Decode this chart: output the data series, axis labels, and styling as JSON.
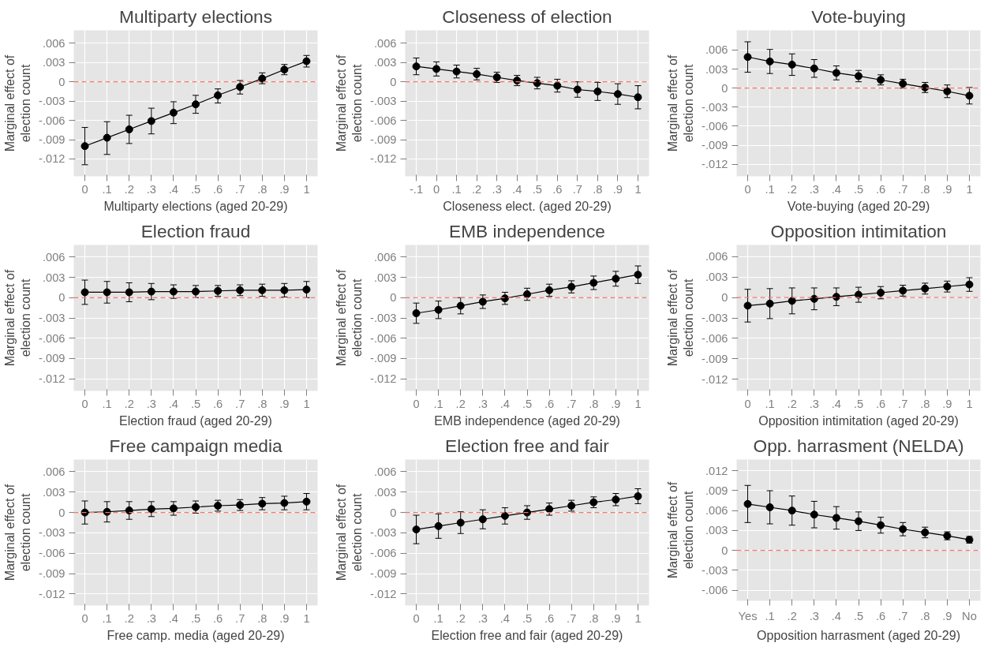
{
  "chart_data": [
    {
      "type": "line",
      "title": "Multiparty elections",
      "xlabel": "Multiparty elections (aged 20-29)",
      "ylabel": "Marginal effect of\nelection count",
      "x": [
        0,
        0.1,
        0.2,
        0.3,
        0.4,
        0.5,
        0.6,
        0.7,
        0.8,
        0.9,
        1
      ],
      "values": [
        -0.01,
        -0.0087,
        -0.0074,
        -0.0061,
        -0.0048,
        -0.0035,
        -0.0021,
        -0.0008,
        0.0005,
        0.0019,
        0.0032
      ],
      "errors": [
        [
          -0.0129,
          -0.0071
        ],
        [
          -0.0113,
          -0.0062
        ],
        [
          -0.0096,
          -0.0052
        ],
        [
          -0.0081,
          -0.0041
        ],
        [
          -0.0065,
          -0.0031
        ],
        [
          -0.0049,
          -0.0021
        ],
        [
          -0.0033,
          -0.0011
        ],
        [
          -0.0019,
          0.0002
        ],
        [
          -0.0003,
          0.0014
        ],
        [
          0.0011,
          0.0027
        ],
        [
          0.0023,
          0.0041
        ]
      ],
      "color": "#000000",
      "marker": "circle",
      "line_style": "solid",
      "grid": true,
      "xlim": [
        -0.05,
        1.05
      ],
      "ylim": [
        -0.0147,
        0.008
      ],
      "xticks": [
        0,
        {
          "value": 0.1,
          "label": ".1"
        },
        {
          "value": 0.2,
          "label": ".2"
        },
        {
          "value": 0.3,
          "label": ".3"
        },
        {
          "value": 0.4,
          "label": ".4"
        },
        {
          "value": 0.5,
          "label": ".5"
        },
        {
          "value": 0.6,
          "label": ".6"
        },
        {
          "value": 0.7,
          "label": ".7"
        },
        {
          "value": 0.8,
          "label": ".8"
        },
        {
          "value": 0.9,
          "label": ".9"
        },
        1
      ],
      "yticks": [
        {
          "value": -0.012,
          "label": "-.012"
        },
        {
          "value": -0.009,
          "label": "-.009"
        },
        {
          "value": -0.006,
          "label": "-.006"
        },
        {
          "value": -0.003,
          "label": "-.003"
        },
        0,
        {
          "value": 0.003,
          "label": ".003"
        },
        {
          "value": 0.006,
          "label": ".006"
        }
      ],
      "ref_lines": [
        {
          "axis": "y",
          "value": 0,
          "color": "#f8766d",
          "line_style": "dashed"
        }
      ]
    },
    {
      "type": "line",
      "title": "Closeness of election",
      "xlabel": "Closeness elect. (aged 20-29)",
      "ylabel": "Marginal effect of\nelection count",
      "x": [
        -0.1,
        0,
        0.1,
        0.2,
        0.3,
        0.4,
        0.5,
        0.6,
        0.7,
        0.8,
        0.9,
        1
      ],
      "values": [
        0.0024,
        0.002,
        0.0016,
        0.0012,
        0.0007,
        0.0002,
        -0.0002,
        -0.0006,
        -0.0012,
        -0.0015,
        -0.0019,
        -0.0024
      ],
      "errors": [
        0.0013,
        0.0011,
        0.001,
        0.0009,
        0.0008,
        0.0008,
        0.0009,
        0.001,
        0.0012,
        0.0014,
        0.0016,
        0.0018
      ],
      "color": "#000000",
      "marker": "circle",
      "line_style": "solid",
      "grid": true,
      "xlim": [
        -0.155,
        1.055
      ],
      "ylim": [
        -0.0147,
        0.008
      ],
      "xticks": [
        {
          "value": -0.1,
          "label": "-.1"
        },
        0,
        {
          "value": 0.1,
          "label": ".1"
        },
        {
          "value": 0.2,
          "label": ".2"
        },
        {
          "value": 0.3,
          "label": ".3"
        },
        {
          "value": 0.4,
          "label": ".4"
        },
        {
          "value": 0.5,
          "label": ".5"
        },
        {
          "value": 0.6,
          "label": ".6"
        },
        {
          "value": 0.7,
          "label": ".7"
        },
        {
          "value": 0.8,
          "label": ".8"
        },
        {
          "value": 0.9,
          "label": ".9"
        },
        1
      ],
      "yticks": [
        {
          "value": -0.012,
          "label": "-.012"
        },
        {
          "value": -0.009,
          "label": "-.009"
        },
        {
          "value": -0.006,
          "label": "-.006"
        },
        {
          "value": -0.003,
          "label": "-.003"
        },
        0,
        {
          "value": 0.003,
          "label": ".003"
        },
        {
          "value": 0.006,
          "label": ".006"
        }
      ],
      "ref_lines": [
        {
          "axis": "y",
          "value": 0,
          "color": "#f8766d",
          "line_style": "dashed"
        }
      ]
    },
    {
      "type": "line",
      "title": "Vote-buying",
      "xlabel": "Vote-buying (aged 20-29)",
      "ylabel": "Marginal effect of\nelection count",
      "x": [
        0,
        0.1,
        0.2,
        0.3,
        0.4,
        0.5,
        0.6,
        0.7,
        0.8,
        0.9,
        1
      ],
      "values": [
        0.0049,
        0.0042,
        0.0037,
        0.0031,
        0.0024,
        0.0019,
        0.0013,
        0.0007,
        0.0001,
        -0.0005,
        -0.0012
      ],
      "errors": [
        0.0024,
        0.0019,
        0.0017,
        0.0014,
        0.0011,
        0.0009,
        0.0008,
        0.0007,
        0.0008,
        0.001,
        0.0013
      ],
      "color": "#000000",
      "marker": "circle",
      "line_style": "solid",
      "grid": true,
      "xlim": [
        -0.05,
        1.05
      ],
      "ylim": [
        -0.0139,
        0.0091
      ],
      "xticks": [
        0,
        {
          "value": 0.1,
          "label": ".1"
        },
        {
          "value": 0.2,
          "label": ".2"
        },
        {
          "value": 0.3,
          "label": ".3"
        },
        {
          "value": 0.4,
          "label": ".4"
        },
        {
          "value": 0.5,
          "label": ".5"
        },
        {
          "value": 0.6,
          "label": ".6"
        },
        {
          "value": 0.7,
          "label": ".7"
        },
        {
          "value": 0.8,
          "label": ".8"
        },
        {
          "value": 0.9,
          "label": ".9"
        },
        1
      ],
      "yticks": [
        {
          "value": -0.012,
          "label": "-.012"
        },
        {
          "value": -0.009,
          "label": "-.009"
        },
        {
          "value": -0.006,
          "label": "-.006"
        },
        {
          "value": -0.003,
          "label": "-.003"
        },
        0,
        {
          "value": 0.003,
          "label": ".003"
        },
        {
          "value": 0.006,
          "label": ".006"
        }
      ],
      "ref_lines": [
        {
          "axis": "y",
          "value": 0,
          "color": "#f8766d",
          "line_style": "dashed"
        }
      ]
    },
    {
      "type": "line",
      "title": "Election fraud",
      "xlabel": "Election fraud (aged 20-29)",
      "ylabel": "Marginal effect of\nelection count",
      "x": [
        0,
        0.1,
        0.2,
        0.3,
        0.4,
        0.5,
        0.6,
        0.7,
        0.8,
        0.9,
        1
      ],
      "values": [
        0.0008,
        0.0008,
        0.0008,
        0.0009,
        0.0009,
        0.0009,
        0.001,
        0.0011,
        0.0011,
        0.0011,
        0.0012
      ],
      "errors": [
        0.0018,
        0.0016,
        0.0014,
        0.0012,
        0.001,
        0.0009,
        0.0008,
        0.0008,
        0.0009,
        0.001,
        0.0012
      ],
      "color": "#000000",
      "marker": "circle",
      "line_style": "solid",
      "grid": true,
      "xlim": [
        -0.05,
        1.05
      ],
      "ylim": [
        -0.0138,
        0.0078
      ],
      "xticks": [
        0,
        {
          "value": 0.1,
          "label": ".1"
        },
        {
          "value": 0.2,
          "label": ".2"
        },
        {
          "value": 0.3,
          "label": ".3"
        },
        {
          "value": 0.4,
          "label": ".4"
        },
        {
          "value": 0.5,
          "label": ".5"
        },
        {
          "value": 0.6,
          "label": ".6"
        },
        {
          "value": 0.7,
          "label": ".7"
        },
        {
          "value": 0.8,
          "label": ".8"
        },
        {
          "value": 0.9,
          "label": ".9"
        },
        1
      ],
      "yticks": [
        {
          "value": -0.012,
          "label": "-.012"
        },
        {
          "value": -0.009,
          "label": "-.009"
        },
        {
          "value": -0.006,
          "label": "-.006"
        },
        {
          "value": -0.003,
          "label": "-.003"
        },
        0,
        {
          "value": 0.003,
          "label": ".003"
        },
        {
          "value": 0.006,
          "label": ".006"
        }
      ],
      "ref_lines": [
        {
          "axis": "y",
          "value": 0,
          "color": "#f8766d",
          "line_style": "dashed"
        }
      ]
    },
    {
      "type": "line",
      "title": "EMB independence",
      "xlabel": "EMB independence (aged 20-29)",
      "ylabel": "Marginal effect of\nelection count",
      "x": [
        0,
        0.1,
        0.2,
        0.3,
        0.4,
        0.5,
        0.6,
        0.7,
        0.8,
        0.9,
        1
      ],
      "values": [
        -0.0023,
        -0.0018,
        -0.0012,
        -0.0006,
        -0.0001,
        0.0005,
        0.0011,
        0.0016,
        0.0022,
        0.0028,
        0.0034
      ],
      "errors": [
        0.0015,
        0.0013,
        0.0012,
        0.001,
        0.0009,
        0.0009,
        0.0009,
        0.0009,
        0.001,
        0.0011,
        0.0013
      ],
      "color": "#000000",
      "marker": "circle",
      "line_style": "solid",
      "grid": true,
      "xlim": [
        -0.05,
        1.05
      ],
      "ylim": [
        -0.0138,
        0.0078
      ],
      "xticks": [
        0,
        {
          "value": 0.1,
          "label": ".1"
        },
        {
          "value": 0.2,
          "label": ".2"
        },
        {
          "value": 0.3,
          "label": ".3"
        },
        {
          "value": 0.4,
          "label": ".4"
        },
        {
          "value": 0.5,
          "label": ".5"
        },
        {
          "value": 0.6,
          "label": ".6"
        },
        {
          "value": 0.7,
          "label": ".7"
        },
        {
          "value": 0.8,
          "label": ".8"
        },
        {
          "value": 0.9,
          "label": ".9"
        },
        1
      ],
      "yticks": [
        {
          "value": -0.012,
          "label": "-.012"
        },
        {
          "value": -0.009,
          "label": "-.009"
        },
        {
          "value": -0.006,
          "label": "-.006"
        },
        {
          "value": -0.003,
          "label": "-.003"
        },
        0,
        {
          "value": 0.003,
          "label": ".003"
        },
        {
          "value": 0.006,
          "label": ".006"
        }
      ],
      "ref_lines": [
        {
          "axis": "y",
          "value": 0,
          "color": "#f8766d",
          "line_style": "dashed"
        }
      ]
    },
    {
      "type": "line",
      "title": "Opposition intimitation",
      "xlabel": "Opposition intimitation (aged 20-29)",
      "ylabel": "Marginal effect of\nelection count",
      "x": [
        0,
        0.1,
        0.2,
        0.3,
        0.4,
        0.5,
        0.6,
        0.7,
        0.8,
        0.9,
        1
      ],
      "values": [
        -0.0012,
        -0.0009,
        -0.0005,
        -0.0002,
        0.0001,
        0.0004,
        0.0007,
        0.001,
        0.0013,
        0.0016,
        0.0019
      ],
      "errors": [
        0.0024,
        0.0022,
        0.0019,
        0.0016,
        0.0013,
        0.0011,
        0.0009,
        0.0008,
        0.0008,
        0.0008,
        0.001
      ],
      "color": "#000000",
      "marker": "circle",
      "line_style": "solid",
      "grid": true,
      "xlim": [
        -0.05,
        1.05
      ],
      "ylim": [
        -0.0137,
        0.0077
      ],
      "xticks": [
        0,
        {
          "value": 0.1,
          "label": ".1"
        },
        {
          "value": 0.2,
          "label": ".2"
        },
        {
          "value": 0.3,
          "label": ".3"
        },
        {
          "value": 0.4,
          "label": ".4"
        },
        {
          "value": 0.5,
          "label": ".5"
        },
        {
          "value": 0.6,
          "label": ".6"
        },
        {
          "value": 0.7,
          "label": ".7"
        },
        {
          "value": 0.8,
          "label": ".8"
        },
        {
          "value": 0.9,
          "label": ".9"
        },
        1
      ],
      "yticks": [
        {
          "value": -0.012,
          "label": "-.012"
        },
        {
          "value": -0.009,
          "label": "-.009"
        },
        {
          "value": -0.006,
          "label": "-.006"
        },
        {
          "value": -0.003,
          "label": "-.003"
        },
        0,
        {
          "value": 0.003,
          "label": ".003"
        },
        {
          "value": 0.006,
          "label": ".006"
        }
      ],
      "ref_lines": [
        {
          "axis": "y",
          "value": 0,
          "color": "#f8766d",
          "line_style": "dashed"
        }
      ]
    },
    {
      "type": "line",
      "title": "Free campaign media",
      "xlabel": "Free camp. media (aged 20-29)",
      "ylabel": "Marginal effect of\nelection count",
      "x": [
        0,
        0.1,
        0.2,
        0.3,
        0.4,
        0.5,
        0.6,
        0.7,
        0.8,
        0.9,
        1
      ],
      "values": [
        0.0,
        0.0001,
        0.0003,
        0.0005,
        0.0006,
        0.0008,
        0.001,
        0.0011,
        0.0013,
        0.0014,
        0.0016
      ],
      "errors": [
        0.0017,
        0.0015,
        0.0013,
        0.0011,
        0.001,
        0.0009,
        0.0008,
        0.0008,
        0.0009,
        0.001,
        0.0012
      ],
      "color": "#000000",
      "marker": "circle",
      "line_style": "solid",
      "grid": true,
      "xlim": [
        -0.05,
        1.05
      ],
      "ylim": [
        -0.0137,
        0.0078
      ],
      "xticks": [
        0,
        {
          "value": 0.1,
          "label": ".1"
        },
        {
          "value": 0.2,
          "label": ".2"
        },
        {
          "value": 0.3,
          "label": ".3"
        },
        {
          "value": 0.4,
          "label": ".4"
        },
        {
          "value": 0.5,
          "label": ".5"
        },
        {
          "value": 0.6,
          "label": ".6"
        },
        {
          "value": 0.7,
          "label": ".7"
        },
        {
          "value": 0.8,
          "label": ".8"
        },
        {
          "value": 0.9,
          "label": ".9"
        },
        1
      ],
      "yticks": [
        {
          "value": -0.012,
          "label": "-.012"
        },
        {
          "value": -0.009,
          "label": "-.009"
        },
        {
          "value": -0.006,
          "label": "-.006"
        },
        {
          "value": -0.003,
          "label": "-.003"
        },
        0,
        {
          "value": 0.003,
          "label": ".003"
        },
        {
          "value": 0.006,
          "label": ".006"
        }
      ],
      "ref_lines": [
        {
          "axis": "y",
          "value": 0,
          "color": "#f8766d",
          "line_style": "dashed"
        }
      ]
    },
    {
      "type": "line",
      "title": "Election free and fair",
      "xlabel": "Election free and fair (aged 20-29)",
      "ylabel": "Marginal effect of\nelection count",
      "x": [
        0,
        0.1,
        0.2,
        0.3,
        0.4,
        0.5,
        0.6,
        0.7,
        0.8,
        0.9,
        1
      ],
      "values": [
        -0.0025,
        -0.002,
        -0.0015,
        -0.001,
        -0.0005,
        0.0,
        0.0005,
        0.001,
        0.0015,
        0.0019,
        0.0024
      ],
      "errors": [
        0.0021,
        0.0018,
        0.0016,
        0.0014,
        0.0012,
        0.001,
        0.0009,
        0.0008,
        0.0008,
        0.0009,
        0.0011
      ],
      "color": "#000000",
      "marker": "circle",
      "line_style": "solid",
      "grid": true,
      "xlim": [
        -0.05,
        1.05
      ],
      "ylim": [
        -0.0137,
        0.0078
      ],
      "xticks": [
        0,
        {
          "value": 0.1,
          "label": ".1"
        },
        {
          "value": 0.2,
          "label": ".2"
        },
        {
          "value": 0.3,
          "label": ".3"
        },
        {
          "value": 0.4,
          "label": ".4"
        },
        {
          "value": 0.5,
          "label": ".5"
        },
        {
          "value": 0.6,
          "label": ".6"
        },
        {
          "value": 0.7,
          "label": ".7"
        },
        {
          "value": 0.8,
          "label": ".8"
        },
        {
          "value": 0.9,
          "label": ".9"
        },
        1
      ],
      "yticks": [
        {
          "value": -0.012,
          "label": "-.012"
        },
        {
          "value": -0.009,
          "label": "-.009"
        },
        {
          "value": -0.006,
          "label": "-.006"
        },
        {
          "value": -0.003,
          "label": "-.003"
        },
        0,
        {
          "value": 0.003,
          "label": ".003"
        },
        {
          "value": 0.006,
          "label": ".006"
        }
      ],
      "ref_lines": [
        {
          "axis": "y",
          "value": 0,
          "color": "#f8766d",
          "line_style": "dashed"
        }
      ]
    },
    {
      "type": "line",
      "title": "Opp. harrasment (NELDA)",
      "xlabel": "Opposition harrasment (aged 20-29)",
      "ylabel": "Marginal effect of\nelection count",
      "x": [
        0,
        0.1,
        0.2,
        0.3,
        0.4,
        0.5,
        0.6,
        0.7,
        0.8,
        0.9,
        1
      ],
      "values": [
        0.007,
        0.0065,
        0.006,
        0.0054,
        0.0049,
        0.0044,
        0.0038,
        0.0032,
        0.0027,
        0.0022,
        0.0016
      ],
      "errors": [
        0.0028,
        0.0025,
        0.0022,
        0.002,
        0.0017,
        0.0014,
        0.0012,
        0.001,
        0.0008,
        0.0006,
        0.0005
      ],
      "color": "#000000",
      "marker": "circle",
      "line_style": "solid",
      "grid": true,
      "xlim": [
        -0.05,
        1.05
      ],
      "ylim": [
        -0.0076,
        0.0137
      ],
      "xticks": [
        {
          "value": 0,
          "label": "Yes"
        },
        {
          "value": 0.1,
          "label": ".1"
        },
        {
          "value": 0.2,
          "label": ".2"
        },
        {
          "value": 0.3,
          "label": ".3"
        },
        {
          "value": 0.4,
          "label": ".4"
        },
        {
          "value": 0.5,
          "label": ".5"
        },
        {
          "value": 0.6,
          "label": ".6"
        },
        {
          "value": 0.7,
          "label": ".7"
        },
        {
          "value": 0.8,
          "label": ".8"
        },
        {
          "value": 0.9,
          "label": ".9"
        },
        {
          "value": 1,
          "label": "No"
        }
      ],
      "yticks": [
        {
          "value": -0.006,
          "label": "-.006"
        },
        {
          "value": -0.003,
          "label": "-.003"
        },
        0,
        {
          "value": 0.003,
          "label": ".003"
        },
        {
          "value": 0.006,
          "label": ".006"
        },
        {
          "value": 0.009,
          "label": ".009"
        },
        {
          "value": 0.012,
          "label": ".012"
        }
      ],
      "ref_lines": [
        {
          "axis": "y",
          "value": 0,
          "color": "#f8766d",
          "line_style": "dashed"
        }
      ]
    }
  ]
}
